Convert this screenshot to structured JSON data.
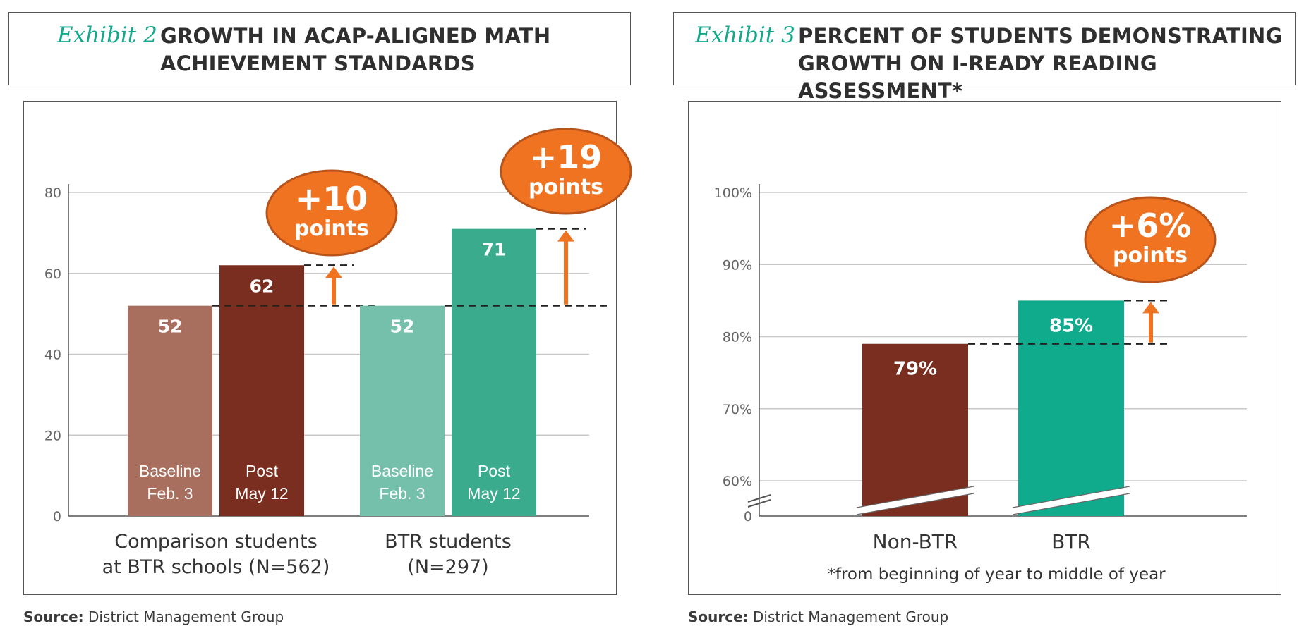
{
  "exhibit2": {
    "exhibit_label": "Exhibit 2",
    "title": "GROWTH IN ACAP-ALIGNED MATH\nACHIEVEMENT STANDARDS",
    "source_label": "Source:",
    "source_text": "District Management Group"
  },
  "exhibit3": {
    "exhibit_label": "Exhibit 3",
    "title": "PERCENT OF STUDENTS DEMONSTRATING\nGROWTH ON I-READY READING ASSESSMENT*",
    "source_label": "Source:",
    "source_text": "District Management Group"
  },
  "colors": {
    "comparison_baseline": "#a96f5e",
    "comparison_post": "#7a2e1f",
    "btr_baseline": "#74c0ab",
    "btr_post": "#3aab8d",
    "nonbtr": "#7a2e1f",
    "btr": "#10ab8c",
    "accent_orange": "#f07322",
    "gridline": "#c8c8c8",
    "axis_text": "#666666"
  },
  "chart_data": [
    {
      "type": "bar",
      "ylim": [
        0,
        80
      ],
      "yticks": [
        "0",
        "20",
        "40",
        "60",
        "80"
      ],
      "ytick_values": [
        0,
        20,
        40,
        60,
        80
      ],
      "groups": [
        {
          "label": "Comparison students\nat BTR schools (N=562)",
          "bars": [
            {
              "value": 52,
              "label": "52",
              "sublabel": "Baseline\nFeb. 3",
              "color_key": "comparison_baseline"
            },
            {
              "value": 62,
              "label": "62",
              "sublabel": "Post\nMay 12",
              "color_key": "comparison_post"
            }
          ],
          "callout": {
            "big": "+10",
            "small": "points"
          }
        },
        {
          "label": "BTR students\n(N=297)",
          "bars": [
            {
              "value": 52,
              "label": "52",
              "sublabel": "Baseline\nFeb. 3",
              "color_key": "btr_baseline"
            },
            {
              "value": 71,
              "label": "71",
              "sublabel": "Post\nMay 12",
              "color_key": "btr_post"
            }
          ],
          "callout": {
            "big": "+19",
            "small": "points"
          }
        }
      ]
    },
    {
      "type": "bar",
      "ylim": [
        55,
        100
      ],
      "axis_break": true,
      "yticks": [
        "0",
        "60%",
        "70%",
        "80%",
        "90%",
        "100%"
      ],
      "ytick_values": [
        55,
        60,
        70,
        80,
        90,
        100
      ],
      "categories": [
        "Non-BTR",
        "BTR"
      ],
      "values": [
        79,
        85
      ],
      "value_labels": [
        "79%",
        "85%"
      ],
      "color_keys": [
        "nonbtr",
        "btr"
      ],
      "callout": {
        "big": "+6%",
        "small": "points"
      },
      "footnote": "*from beginning of year to middle of year"
    }
  ]
}
